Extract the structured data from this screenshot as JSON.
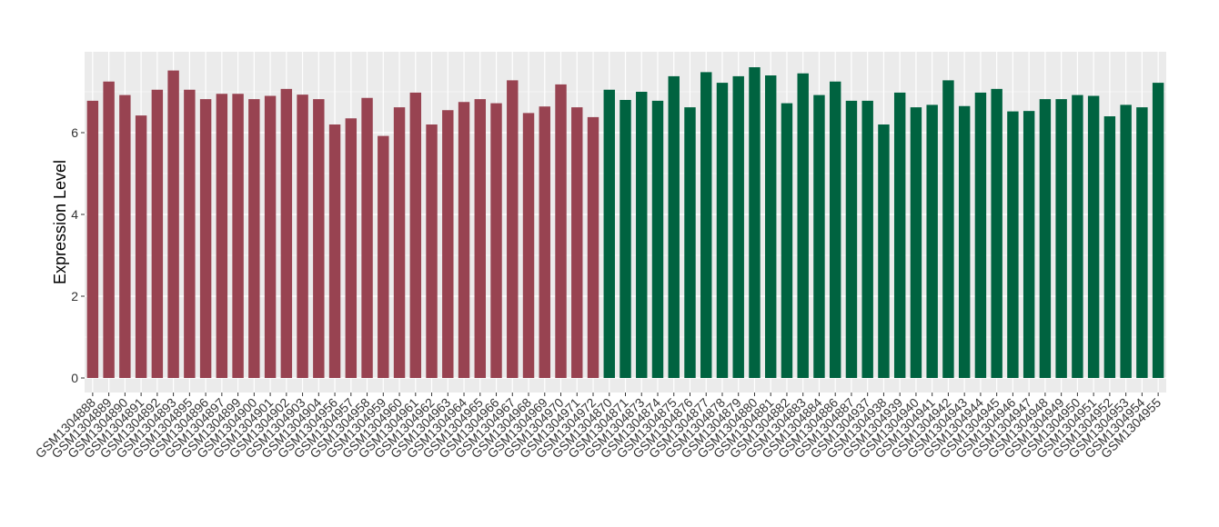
{
  "chart_data": {
    "type": "bar",
    "title": "",
    "xlabel": "",
    "ylabel": "Expression Level",
    "ylim": [
      0,
      7.9
    ],
    "yticks": [
      0,
      2,
      4,
      6
    ],
    "grid": true,
    "legend": "none",
    "colors": {
      "group1": "#984351",
      "group2": "#006340",
      "panel": "#ebebeb",
      "grid": "#ffffff"
    },
    "categories": [
      "GSM1304888",
      "GSM1304889",
      "GSM1304890",
      "GSM1304891",
      "GSM1304892",
      "GSM1304893",
      "GSM1304895",
      "GSM1304896",
      "GSM1304897",
      "GSM1304899",
      "GSM1304900",
      "GSM1304901",
      "GSM1304902",
      "GSM1304903",
      "GSM1304904",
      "GSM1304956",
      "GSM1304957",
      "GSM1304958",
      "GSM1304959",
      "GSM1304960",
      "GSM1304961",
      "GSM1304962",
      "GSM1304963",
      "GSM1304964",
      "GSM1304965",
      "GSM1304966",
      "GSM1304967",
      "GSM1304968",
      "GSM1304969",
      "GSM1304970",
      "GSM1304971",
      "GSM1304972",
      "GSM1304870",
      "GSM1304871",
      "GSM1304873",
      "GSM1304874",
      "GSM1304875",
      "GSM1304876",
      "GSM1304877",
      "GSM1304878",
      "GSM1304879",
      "GSM1304880",
      "GSM1304881",
      "GSM1304882",
      "GSM1304883",
      "GSM1304884",
      "GSM1304886",
      "GSM1304887",
      "GSM1304937",
      "GSM1304938",
      "GSM1304939",
      "GSM1304940",
      "GSM1304941",
      "GSM1304942",
      "GSM1304943",
      "GSM1304944",
      "GSM1304945",
      "GSM1304946",
      "GSM1304947",
      "GSM1304948",
      "GSM1304949",
      "GSM1304950",
      "GSM1304951",
      "GSM1304952",
      "GSM1304953",
      "GSM1304954",
      "GSM1304955"
    ],
    "values": [
      6.78,
      7.25,
      6.92,
      6.42,
      7.05,
      7.52,
      7.05,
      6.82,
      6.95,
      6.95,
      6.82,
      6.9,
      7.07,
      6.93,
      6.82,
      6.2,
      6.35,
      6.85,
      5.92,
      6.62,
      6.98,
      6.2,
      6.55,
      6.75,
      6.82,
      6.72,
      7.28,
      6.48,
      6.64,
      7.18,
      6.62,
      6.38,
      7.05,
      6.8,
      7.0,
      6.78,
      7.38,
      6.62,
      7.48,
      7.22,
      7.38,
      7.6,
      7.4,
      6.72,
      7.45,
      6.92,
      7.25,
      6.78,
      6.78,
      6.2,
      6.98,
      6.62,
      6.68,
      7.28,
      6.65,
      6.98,
      7.07,
      6.52,
      6.53,
      6.82,
      6.82,
      6.92,
      6.9,
      6.4,
      6.68,
      6.62,
      7.22
    ],
    "groups": [
      32,
      35
    ]
  }
}
